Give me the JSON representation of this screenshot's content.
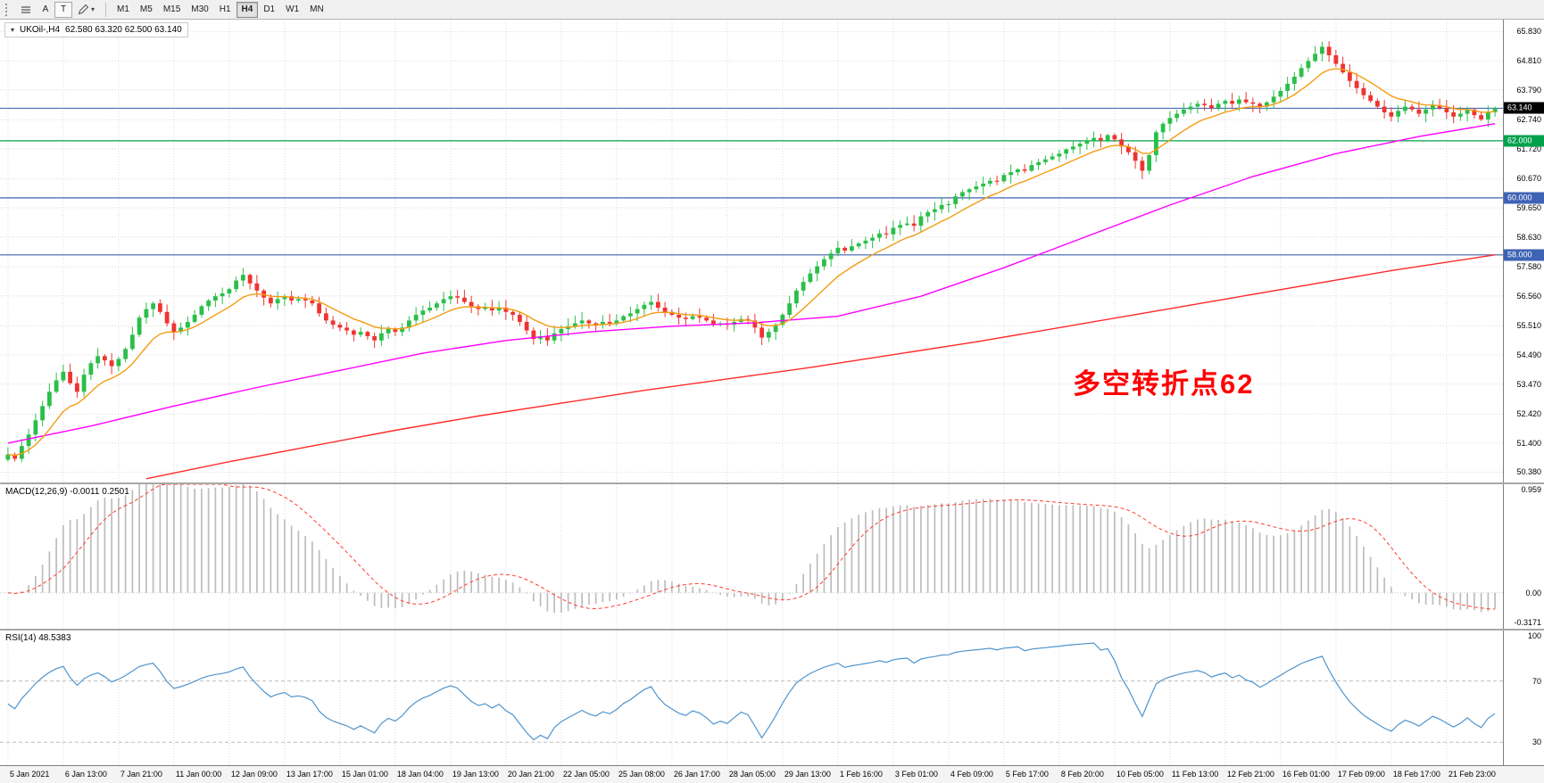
{
  "toolbar": {
    "cursor_label": "A",
    "text_label": "T",
    "timeframes": [
      "M1",
      "M5",
      "M15",
      "M30",
      "H1",
      "H4",
      "D1",
      "W1",
      "MN"
    ],
    "active_timeframe": "H4"
  },
  "main_chart": {
    "symbol_title": "UKOil-,H4",
    "ohlc": "62.580 63.320 62.500 63.140",
    "annotation": {
      "text": "多空转折点62",
      "color": "#FF0000"
    },
    "axis_ticks": [
      "65.830",
      "64.810",
      "63.790",
      "62.740",
      "61.720",
      "60.670",
      "59.650",
      "58.630",
      "57.580",
      "56.560",
      "55.510",
      "54.490",
      "53.470",
      "52.420",
      "51.400",
      "50.380"
    ],
    "levels": [
      {
        "price": 63.14,
        "label": "63.140",
        "line_color": "#4a6db5",
        "badge_color": "#000000"
      },
      {
        "price": 62.0,
        "label": "62.000",
        "line_color": "#00a14b",
        "badge_color": "#00a14b"
      },
      {
        "price": 60.0,
        "label": "60.000",
        "line_color": "#3e62b4",
        "badge_color": "#3e62b4"
      },
      {
        "price": 58.0,
        "label": "58.000",
        "line_color": "#3e62b4",
        "badge_color": "#3e62b4"
      }
    ]
  },
  "macd_panel": {
    "label": "MACD(12,26,9) -0.0011 0.2501",
    "axis_max": "0.959",
    "axis_zero": "0.00",
    "axis_min": "-0.3171"
  },
  "rsi_panel": {
    "label": "RSI(14) 48.5383",
    "axis_ticks": [
      "100",
      "70",
      "30"
    ]
  },
  "time_axis": [
    "5 Jan 2021",
    "6 Jan 13:00",
    "7 Jan 21:00",
    "11 Jan 00:00",
    "12 Jan 09:00",
    "13 Jan 17:00",
    "15 Jan 01:00",
    "18 Jan 04:00",
    "19 Jan 13:00",
    "20 Jan 21:00",
    "22 Jan 05:00",
    "25 Jan 08:00",
    "26 Jan 17:00",
    "28 Jan 05:00",
    "29 Jan 13:00",
    "1 Feb 16:00",
    "3 Feb 01:00",
    "4 Feb 09:00",
    "5 Feb 17:00",
    "8 Feb 20:00",
    "10 Feb 05:00",
    "11 Feb 13:00",
    "12 Feb 21:00",
    "16 Feb 01:00",
    "17 Feb 09:00",
    "18 Feb 17:00",
    "21 Feb 23:00"
  ],
  "chart_data": {
    "type": "candlestick",
    "symbol": "UKOil-",
    "timeframe": "H4",
    "ohlc_current": {
      "open": 62.58,
      "high": 63.32,
      "low": 62.5,
      "close": 63.14
    },
    "price_range": [
      50.02,
      66.25
    ],
    "bars_per_label": 8,
    "closes": [
      51.0,
      50.85,
      51.3,
      51.7,
      52.2,
      52.7,
      53.2,
      53.6,
      53.9,
      53.5,
      53.2,
      53.8,
      54.2,
      54.45,
      54.3,
      54.1,
      54.35,
      54.7,
      55.2,
      55.8,
      56.1,
      56.3,
      56.0,
      55.6,
      55.3,
      55.45,
      55.65,
      55.9,
      56.2,
      56.4,
      56.55,
      56.65,
      56.8,
      57.1,
      57.3,
      57.0,
      56.75,
      56.5,
      56.3,
      56.45,
      56.55,
      56.4,
      56.45,
      56.4,
      56.3,
      55.95,
      55.7,
      55.55,
      55.45,
      55.35,
      55.2,
      55.3,
      55.15,
      55.0,
      55.25,
      55.4,
      55.3,
      55.45,
      55.7,
      55.9,
      56.05,
      56.15,
      56.3,
      56.45,
      56.55,
      56.5,
      56.35,
      56.2,
      56.1,
      56.15,
      56.05,
      56.15,
      56.0,
      55.9,
      55.65,
      55.35,
      55.05,
      55.15,
      55.0,
      55.25,
      55.4,
      55.5,
      55.6,
      55.7,
      55.6,
      55.55,
      55.65,
      55.6,
      55.7,
      55.85,
      55.95,
      56.1,
      56.25,
      56.35,
      56.15,
      56.0,
      55.9,
      55.8,
      55.75,
      55.85,
      55.8,
      55.7,
      55.55,
      55.6,
      55.55,
      55.65,
      55.75,
      55.7,
      55.45,
      55.1,
      55.3,
      55.55,
      55.9,
      56.3,
      56.75,
      57.05,
      57.35,
      57.6,
      57.85,
      58.05,
      58.25,
      58.15,
      58.3,
      58.4,
      58.5,
      58.6,
      58.75,
      58.72,
      58.95,
      59.05,
      59.1,
      59.02,
      59.35,
      59.5,
      59.6,
      59.75,
      59.78,
      60.05,
      60.2,
      60.3,
      60.4,
      60.5,
      60.6,
      60.58,
      60.8,
      60.9,
      61.0,
      60.95,
      61.15,
      61.25,
      61.35,
      61.45,
      61.55,
      61.7,
      61.8,
      61.9,
      62.0,
      62.1,
      62.02,
      62.2,
      62.05,
      61.8,
      61.6,
      61.3,
      60.95,
      61.5,
      62.3,
      62.6,
      62.8,
      62.95,
      63.1,
      63.2,
      63.3,
      63.25,
      63.15,
      63.3,
      63.4,
      63.3,
      63.45,
      63.35,
      63.3,
      63.2,
      63.35,
      63.55,
      63.75,
      64.0,
      64.25,
      64.55,
      64.8,
      65.05,
      65.3,
      65.0,
      64.7,
      64.4,
      64.1,
      63.85,
      63.6,
      63.4,
      63.2,
      63.0,
      62.85,
      63.05,
      63.2,
      63.1,
      62.95,
      63.1,
      63.25,
      63.15,
      63.0,
      62.85,
      62.95,
      63.1,
      62.9,
      62.75,
      63.0,
      63.14
    ],
    "overlays": {
      "ma_fast": {
        "type": "ema",
        "period": 10,
        "color": "#f39c12"
      },
      "ma_mid": {
        "color": "#ff00ff",
        "points": [
          [
            0,
            51.4
          ],
          [
            12,
            52.0
          ],
          [
            24,
            52.7
          ],
          [
            36,
            53.35
          ],
          [
            48,
            53.95
          ],
          [
            60,
            54.55
          ],
          [
            72,
            55.0
          ],
          [
            84,
            55.3
          ],
          [
            96,
            55.5
          ],
          [
            108,
            55.62
          ],
          [
            120,
            55.85
          ],
          [
            132,
            56.55
          ],
          [
            144,
            57.55
          ],
          [
            156,
            58.65
          ],
          [
            168,
            59.75
          ],
          [
            180,
            60.75
          ],
          [
            192,
            61.55
          ],
          [
            204,
            62.15
          ],
          [
            215,
            62.6
          ]
        ]
      },
      "ma_slow": {
        "color": "#ff2a2a",
        "points": [
          [
            20,
            50.15
          ],
          [
            32,
            50.75
          ],
          [
            44,
            51.3
          ],
          [
            56,
            51.85
          ],
          [
            68,
            52.35
          ],
          [
            80,
            52.8
          ],
          [
            92,
            53.25
          ],
          [
            104,
            53.65
          ],
          [
            116,
            54.05
          ],
          [
            128,
            54.5
          ],
          [
            140,
            54.95
          ],
          [
            152,
            55.45
          ],
          [
            164,
            55.95
          ],
          [
            176,
            56.45
          ],
          [
            188,
            56.95
          ],
          [
            200,
            57.45
          ],
          [
            215,
            58.0
          ]
        ]
      }
    },
    "indicators": {
      "macd": {
        "fast": 12,
        "slow": 26,
        "signal": 9,
        "range": [
          -0.3171,
          0.959
        ],
        "hist_color": "#bdbdbd",
        "signal_color": "#ff3b30",
        "current_main": -0.0011,
        "current_signal": 0.2501
      },
      "rsi": {
        "period": 14,
        "range": [
          15,
          103
        ],
        "color": "#4f94cd",
        "levels": [
          70,
          30
        ],
        "current": 48.5383
      }
    }
  }
}
